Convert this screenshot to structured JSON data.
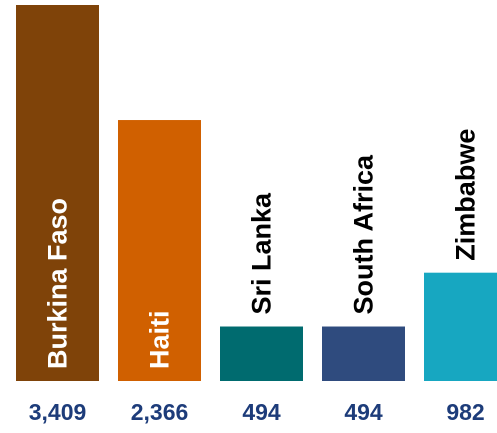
{
  "chart_data": {
    "type": "bar",
    "title": "",
    "xlabel": "",
    "ylabel": "",
    "ylim": [
      0,
      3409
    ],
    "grid": false,
    "legend": "none",
    "categories": [
      "Burkina Faso",
      "Haiti",
      "Sri Lanka",
      "South Africa",
      "Zimbabwe"
    ],
    "values": [
      3409,
      2366,
      494,
      494,
      982
    ],
    "value_labels": [
      "3,409",
      "2,366",
      "494",
      "494",
      "982"
    ],
    "bar_colors": [
      "#7F4309",
      "#D06000",
      "#006B6F",
      "#2F4B7E",
      "#17A7C1"
    ],
    "label_colors": [
      "#ffffff",
      "#ffffff",
      "#000000",
      "#000000",
      "#000000"
    ],
    "value_label_color": "#1D3C7A"
  }
}
